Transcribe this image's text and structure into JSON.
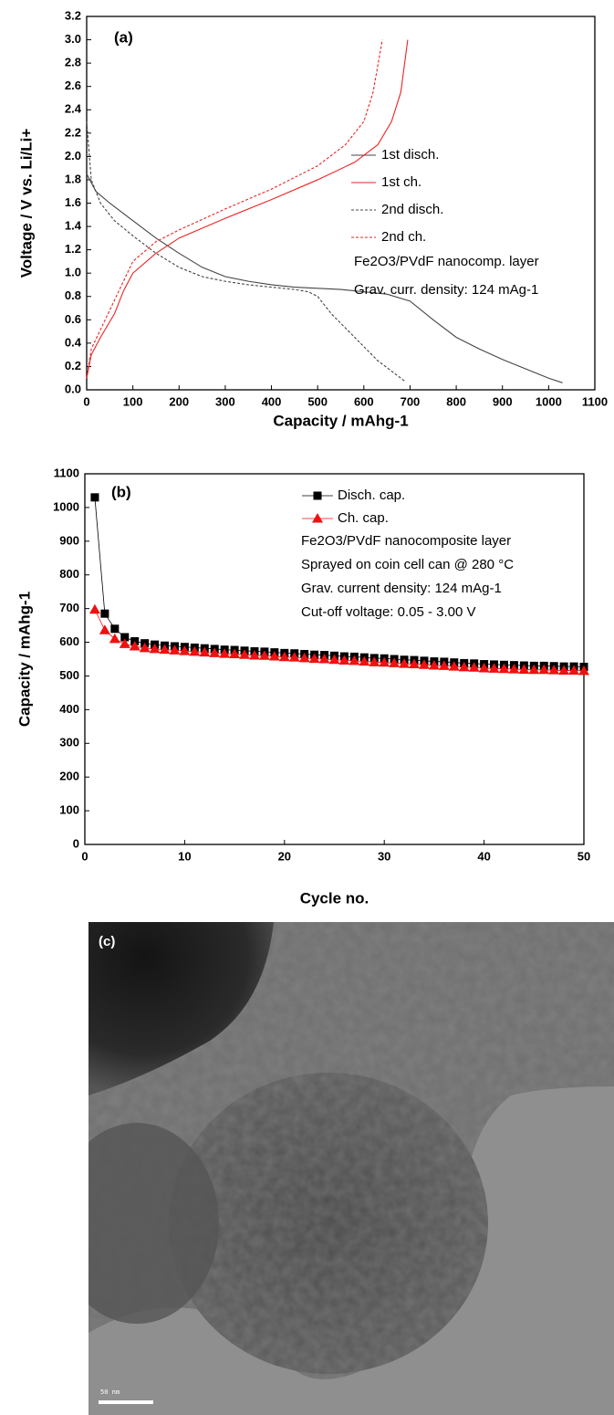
{
  "chart_data": [
    {
      "type": "line",
      "label": "(a)",
      "xlabel": "Capacity / mAhg-1",
      "ylabel": "Voltage / V vs. Li/Li+",
      "xlim": [
        0,
        1100
      ],
      "xticks": [
        0,
        100,
        200,
        300,
        400,
        500,
        600,
        700,
        800,
        900,
        1000,
        1100
      ],
      "ylim": [
        0,
        3.2
      ],
      "yticks": [
        {
          "value": 0,
          "label": "0.0"
        },
        0.2,
        0.4,
        0.6,
        0.8,
        {
          "value": 1,
          "label": "1.0"
        },
        1.2,
        1.4,
        1.6,
        1.8,
        {
          "value": 2,
          "label": "2.0"
        },
        2.2,
        2.4,
        2.6,
        2.8,
        {
          "value": 3,
          "label": "3.0"
        },
        3.2
      ],
      "series": [
        {
          "name": "1st disch.",
          "color": "#444444",
          "dash": false,
          "x": [
            0,
            20,
            50,
            100,
            150,
            200,
            250,
            300,
            350,
            400,
            450,
            500,
            550,
            600,
            650,
            700,
            750,
            800,
            850,
            900,
            950,
            1000,
            1030
          ],
          "values": [
            1.85,
            1.7,
            1.6,
            1.45,
            1.3,
            1.17,
            1.05,
            0.97,
            0.93,
            0.9,
            0.88,
            0.87,
            0.86,
            0.84,
            0.82,
            0.76,
            0.6,
            0.45,
            0.35,
            0.26,
            0.18,
            0.1,
            0.06
          ]
        },
        {
          "name": "1st ch.",
          "color": "#ee2222",
          "dash": false,
          "x": [
            0,
            10,
            30,
            60,
            80,
            100,
            150,
            200,
            300,
            400,
            500,
            580,
            630,
            660,
            680,
            695
          ],
          "values": [
            0.1,
            0.3,
            0.45,
            0.65,
            0.85,
            1.0,
            1.17,
            1.3,
            1.47,
            1.63,
            1.8,
            1.95,
            2.1,
            2.3,
            2.55,
            3.0
          ]
        },
        {
          "name": "2nd disch.",
          "color": "#444444",
          "dash": true,
          "x": [
            0,
            10,
            30,
            60,
            100,
            150,
            200,
            250,
            300,
            350,
            400,
            450,
            480,
            500,
            530,
            580,
            630,
            690
          ],
          "values": [
            2.3,
            1.8,
            1.6,
            1.45,
            1.32,
            1.17,
            1.05,
            0.97,
            0.93,
            0.9,
            0.88,
            0.86,
            0.84,
            0.8,
            0.65,
            0.45,
            0.25,
            0.07
          ]
        },
        {
          "name": "2nd ch.",
          "color": "#ee2222",
          "dash": true,
          "x": [
            0,
            10,
            40,
            70,
            100,
            150,
            200,
            300,
            400,
            500,
            560,
            600,
            620,
            640
          ],
          "values": [
            0.1,
            0.35,
            0.6,
            0.85,
            1.1,
            1.27,
            1.37,
            1.55,
            1.72,
            1.92,
            2.1,
            2.3,
            2.55,
            3.0
          ]
        }
      ],
      "annotations": [
        "Fe2O3/PVdF nanocomp. layer",
        "Grav. curr. density: 124 mAg-1"
      ]
    },
    {
      "type": "scatter",
      "label": "(b)",
      "xlabel": "Cycle no.",
      "ylabel": "Capacity / mAhg-1",
      "xlim": [
        0,
        50
      ],
      "xticks": [
        0,
        10,
        20,
        30,
        40,
        50
      ],
      "ylim": [
        0,
        1100
      ],
      "yticks": [
        0,
        100,
        200,
        300,
        400,
        500,
        600,
        700,
        800,
        900,
        1000,
        1100
      ],
      "x": [
        1,
        2,
        3,
        4,
        5,
        6,
        7,
        8,
        9,
        10,
        11,
        12,
        13,
        14,
        15,
        16,
        17,
        18,
        19,
        20,
        21,
        22,
        23,
        24,
        25,
        26,
        27,
        28,
        29,
        30,
        31,
        32,
        33,
        34,
        35,
        36,
        37,
        38,
        39,
        40,
        41,
        42,
        43,
        44,
        45,
        46,
        47,
        48,
        49,
        50
      ],
      "series": [
        {
          "name": "Disch. cap.",
          "color": "#000000",
          "marker": "square",
          "values": [
            1030,
            685,
            640,
            615,
            603,
            597,
            593,
            590,
            588,
            586,
            584,
            582,
            580,
            578,
            577,
            575,
            573,
            572,
            570,
            568,
            567,
            565,
            563,
            562,
            560,
            558,
            557,
            555,
            553,
            552,
            550,
            548,
            547,
            545,
            543,
            542,
            540,
            538,
            537,
            535,
            534,
            533,
            532,
            531,
            530,
            530,
            529,
            528,
            528,
            527
          ]
        },
        {
          "name": "Ch. cap.",
          "color": "#ee1111",
          "marker": "triangle",
          "values": [
            697,
            636,
            610,
            595,
            588,
            583,
            580,
            578,
            576,
            574,
            572,
            570,
            568,
            566,
            565,
            563,
            561,
            560,
            558,
            556,
            555,
            553,
            551,
            550,
            548,
            546,
            545,
            543,
            541,
            540,
            538,
            536,
            535,
            533,
            531,
            530,
            528,
            526,
            525,
            523,
            522,
            521,
            520,
            519,
            518,
            518,
            517,
            516,
            516,
            515
          ]
        }
      ],
      "annotations": [
        "Fe2O3/PVdF nanocomposite layer",
        "Sprayed on coin cell can @ 280 °C",
        "Grav. current density: 124 mAg-1",
        "Cut-off voltage: 0.05 - 3.00 V"
      ]
    }
  ],
  "image": {
    "label": "(c)",
    "scale_bar": "50 nm"
  }
}
